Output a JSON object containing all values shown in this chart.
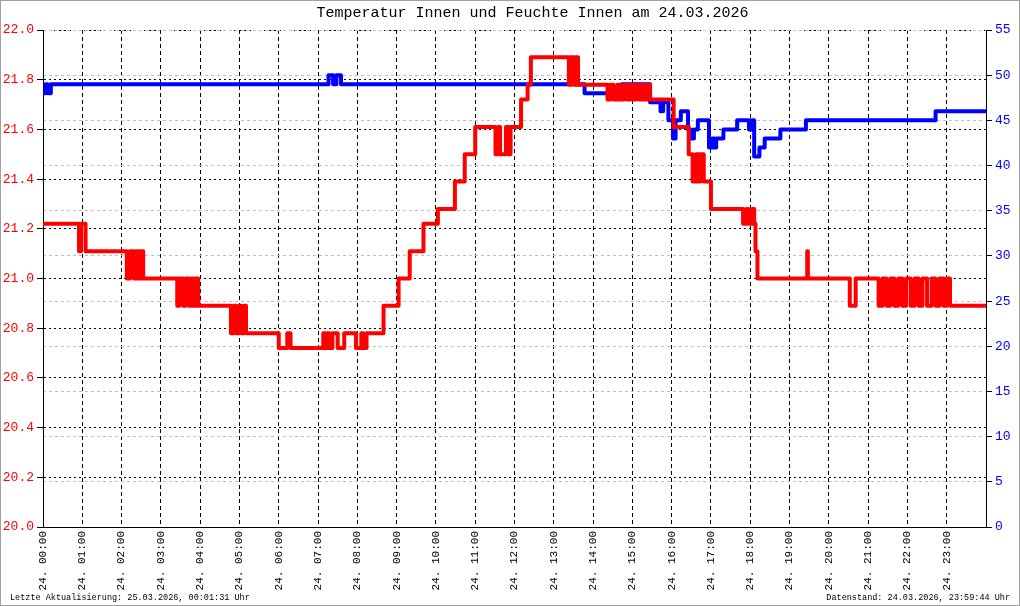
{
  "chart_data": {
    "type": "step",
    "title": "Temperatur Innen und Feuchte Innen am 24.03.2026",
    "annotations": [
      "Letzte Aktualisierung: 25.03.2026, 00:01:31 Uhr",
      "Datenstand: 24.03.2026, 23:59:44 Uhr"
    ],
    "xlim": [
      "2026-03-24T00:00",
      "2026-03-25T00:00"
    ],
    "xticks": [
      {
        "value": "2026-03-24T00:00",
        "label": "24. 00:00"
      },
      {
        "value": "2026-03-24T01:00",
        "label": "24. 01:00"
      },
      {
        "value": "2026-03-24T02:00",
        "label": "24. 02:00"
      },
      {
        "value": "2026-03-24T03:00",
        "label": "24. 03:00"
      },
      {
        "value": "2026-03-24T04:00",
        "label": "24. 04:00"
      },
      {
        "value": "2026-03-24T05:00",
        "label": "24. 05:00"
      },
      {
        "value": "2026-03-24T06:00",
        "label": "24. 06:00"
      },
      {
        "value": "2026-03-24T07:00",
        "label": "24. 07:00"
      },
      {
        "value": "2026-03-24T08:00",
        "label": "24. 08:00"
      },
      {
        "value": "2026-03-24T09:00",
        "label": "24. 09:00"
      },
      {
        "value": "2026-03-24T10:00",
        "label": "24. 10:00"
      },
      {
        "value": "2026-03-24T11:00",
        "label": "24. 11:00"
      },
      {
        "value": "2026-03-24T12:00",
        "label": "24. 12:00"
      },
      {
        "value": "2026-03-24T13:00",
        "label": "24. 13:00"
      },
      {
        "value": "2026-03-24T14:00",
        "label": "24. 14:00"
      },
      {
        "value": "2026-03-24T15:00",
        "label": "24. 15:00"
      },
      {
        "value": "2026-03-24T16:00",
        "label": "24. 16:00"
      },
      {
        "value": "2026-03-24T17:00",
        "label": "24. 17:00"
      },
      {
        "value": "2026-03-24T18:00",
        "label": "24. 18:00"
      },
      {
        "value": "2026-03-24T19:00",
        "label": "24. 19:00"
      },
      {
        "value": "2026-03-24T20:00",
        "label": "24. 20:00"
      },
      {
        "value": "2026-03-24T21:00",
        "label": "24. 21:00"
      },
      {
        "value": "2026-03-24T22:00",
        "label": "24. 22:00"
      },
      {
        "value": "2026-03-24T23:00",
        "label": "24. 23:00"
      }
    ],
    "ylim": [
      20,
      22
    ],
    "yticks": [
      {
        "value": 20,
        "label": "20.0"
      },
      20.2,
      20.4,
      20.6,
      20.8,
      {
        "value": 21,
        "label": "21.0"
      },
      21.2,
      21.4,
      21.6,
      21.8,
      {
        "value": 22,
        "label": "22.0"
      }
    ],
    "y2lim": [
      0,
      55
    ],
    "y2ticks": [
      0,
      5,
      10,
      15,
      20,
      25,
      30,
      35,
      40,
      45,
      50,
      55
    ],
    "grid": true,
    "series": [
      {
        "color": "#ff0000",
        "x": [
          "2026-03-24T00:00",
          "2026-03-24T00:55",
          "2026-03-24T00:58",
          "2026-03-24T01:05",
          "2026-03-24T02:08",
          "2026-03-24T02:13",
          "2026-03-24T02:19",
          "2026-03-24T02:22",
          "2026-03-24T02:26",
          "2026-03-24T02:29",
          "2026-03-24T02:33",
          "2026-03-24T03:25",
          "2026-03-24T03:28",
          "2026-03-24T03:34",
          "2026-03-24T03:38",
          "2026-03-24T03:43",
          "2026-03-24T03:47",
          "2026-03-24T03:51",
          "2026-03-24T03:54",
          "2026-03-24T03:57",
          "2026-03-24T04:47",
          "2026-03-24T04:51",
          "2026-03-24T04:55",
          "2026-03-24T05:00",
          "2026-03-24T05:03",
          "2026-03-24T05:07",
          "2026-03-24T05:10",
          "2026-03-24T06:00",
          "2026-03-24T06:13",
          "2026-03-24T06:18",
          "2026-03-24T07:08",
          "2026-03-24T07:11",
          "2026-03-24T07:14",
          "2026-03-24T07:17",
          "2026-03-24T07:22",
          "2026-03-24T07:30",
          "2026-03-24T07:40",
          "2026-03-24T07:58",
          "2026-03-24T08:06",
          "2026-03-24T08:09",
          "2026-03-24T08:14",
          "2026-03-24T08:40",
          "2026-03-24T09:03",
          "2026-03-24T09:20",
          "2026-03-24T09:41",
          "2026-03-24T10:03",
          "2026-03-24T10:29",
          "2026-03-24T10:44",
          "2026-03-24T11:00",
          "2026-03-24T11:31",
          "2026-03-24T11:35",
          "2026-03-24T11:38",
          "2026-03-24T11:47",
          "2026-03-24T11:51",
          "2026-03-24T11:54",
          "2026-03-24T12:10",
          "2026-03-24T12:20",
          "2026-03-24T12:25",
          "2026-03-24T13:23",
          "2026-03-24T13:26",
          "2026-03-24T13:31",
          "2026-03-24T13:34",
          "2026-03-24T13:37",
          "2026-03-24T14:22",
          "2026-03-24T14:26",
          "2026-03-24T14:31",
          "2026-03-24T14:37",
          "2026-03-24T14:41",
          "2026-03-24T14:47",
          "2026-03-24T14:52",
          "2026-03-24T14:57",
          "2026-03-24T15:02",
          "2026-03-24T15:06",
          "2026-03-24T15:11",
          "2026-03-24T15:16",
          "2026-03-24T15:20",
          "2026-03-24T15:23",
          "2026-03-24T15:27",
          "2026-03-24T16:03",
          "2026-03-24T16:26",
          "2026-03-24T16:32",
          "2026-03-24T16:37",
          "2026-03-24T16:41",
          "2026-03-24T16:44",
          "2026-03-24T16:49",
          "2026-03-24T17:00",
          "2026-03-24T17:49",
          "2026-03-24T17:54",
          "2026-03-24T17:57",
          "2026-03-24T18:03",
          "2026-03-24T18:06",
          "2026-03-24T18:08",
          "2026-03-24T18:11",
          "2026-03-24T19:27",
          "2026-03-24T19:28",
          "2026-03-24T20:32",
          "2026-03-24T20:41",
          "2026-03-24T21:16",
          "2026-03-24T21:22",
          "2026-03-24T21:28",
          "2026-03-24T21:34",
          "2026-03-24T21:40",
          "2026-03-24T21:46",
          "2026-03-24T21:52",
          "2026-03-24T21:58",
          "2026-03-24T22:05",
          "2026-03-24T22:11",
          "2026-03-24T22:17",
          "2026-03-24T22:23",
          "2026-03-24T22:30",
          "2026-03-24T22:37",
          "2026-03-24T22:43",
          "2026-03-24T22:49",
          "2026-03-24T22:55",
          "2026-03-24T23:00",
          "2026-03-24T23:05",
          "2026-03-24T23:59"
        ],
        "values": [
          21.22,
          21.11,
          21.22,
          21.11,
          21.0,
          21.11,
          21.0,
          21.11,
          21.0,
          21.11,
          21.0,
          20.89,
          21.0,
          20.89,
          21.0,
          20.89,
          21.0,
          20.89,
          21.0,
          20.89,
          20.78,
          20.89,
          20.78,
          20.89,
          20.78,
          20.89,
          20.78,
          20.72,
          20.78,
          20.72,
          20.78,
          20.72,
          20.78,
          20.72,
          20.78,
          20.72,
          20.78,
          20.72,
          20.78,
          20.72,
          20.78,
          20.89,
          21.0,
          21.11,
          21.22,
          21.28,
          21.39,
          21.5,
          21.61,
          21.5,
          21.61,
          21.5,
          21.61,
          21.5,
          21.61,
          21.72,
          21.78,
          21.89,
          21.78,
          21.89,
          21.78,
          21.89,
          21.78,
          21.72,
          21.78,
          21.72,
          21.78,
          21.72,
          21.78,
          21.72,
          21.78,
          21.72,
          21.78,
          21.72,
          21.78,
          21.72,
          21.78,
          21.72,
          21.61,
          21.5,
          21.39,
          21.5,
          21.39,
          21.5,
          21.39,
          21.28,
          21.22,
          21.28,
          21.22,
          21.28,
          21.22,
          21.11,
          21.0,
          21.11,
          21.0,
          20.89,
          21.0,
          20.89,
          21.0,
          20.89,
          21.0,
          20.89,
          21.0,
          20.89,
          21.0,
          20.89,
          21.0,
          20.89,
          21.0,
          20.89,
          21.0,
          20.89,
          21.0,
          20.89,
          21.0,
          20.89,
          20.89
        ]
      },
      {
        "color": "#0000ff",
        "axis": "y2",
        "x": [
          "2026-03-24T00:00",
          "2026-03-24T00:04",
          "2026-03-24T00:07",
          "2026-03-24T00:12",
          "2026-03-24T07:16",
          "2026-03-24T07:23",
          "2026-03-24T07:28",
          "2026-03-24T07:35",
          "2026-03-24T13:47",
          "2026-03-24T14:44",
          "2026-03-24T15:27",
          "2026-03-24T15:43",
          "2026-03-24T15:47",
          "2026-03-24T15:55",
          "2026-03-24T16:02",
          "2026-03-24T16:06",
          "2026-03-24T16:14",
          "2026-03-24T16:25",
          "2026-03-24T16:29",
          "2026-03-24T16:34",
          "2026-03-24T16:40",
          "2026-03-24T16:57",
          "2026-03-24T17:02",
          "2026-03-24T17:05",
          "2026-03-24T17:08",
          "2026-03-24T17:19",
          "2026-03-24T17:40",
          "2026-03-24T17:58",
          "2026-03-24T18:02",
          "2026-03-24T18:06",
          "2026-03-24T18:14",
          "2026-03-24T18:22",
          "2026-03-24T18:46",
          "2026-03-24T19:25",
          "2026-03-24T22:43",
          "2026-03-24T23:59"
        ],
        "values": [
          48,
          49,
          48,
          49,
          50,
          49,
          50,
          49,
          48,
          49,
          47,
          46,
          47,
          45,
          43,
          45,
          46,
          44,
          43,
          44,
          45,
          42,
          43,
          42,
          43,
          44,
          45,
          44,
          45,
          41,
          42,
          43,
          44,
          45,
          46,
          46
        ]
      }
    ]
  }
}
